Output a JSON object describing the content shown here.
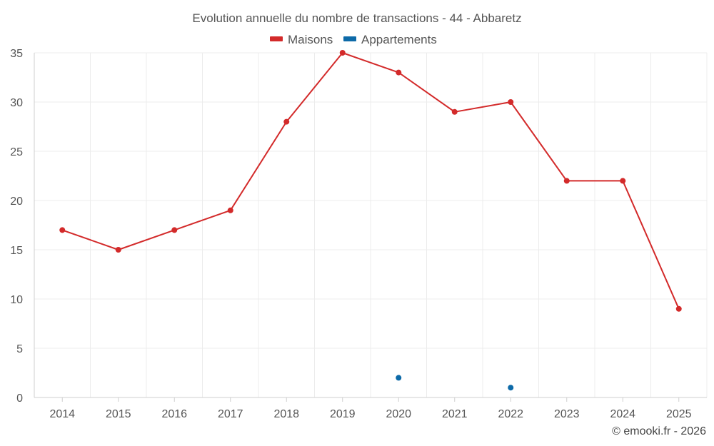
{
  "chart_data": {
    "type": "line",
    "title": "Evolution annuelle du nombre de transactions - 44 - Abbaretz",
    "categories": [
      "2014",
      "2015",
      "2016",
      "2017",
      "2018",
      "2019",
      "2020",
      "2021",
      "2022",
      "2023",
      "2024",
      "2025"
    ],
    "series": [
      {
        "name": "Maisons",
        "color": "#d32a2a",
        "values": [
          17,
          15,
          17,
          19,
          28,
          35,
          33,
          29,
          30,
          22,
          22,
          9
        ]
      },
      {
        "name": "Appartements",
        "color": "#0d6aa8",
        "values": [
          null,
          null,
          null,
          null,
          null,
          null,
          2,
          null,
          1,
          null,
          null,
          null
        ]
      }
    ],
    "yticks": [
      "0",
      "5",
      "10",
      "15",
      "20",
      "25",
      "30",
      "35"
    ],
    "ylim": [
      0,
      35
    ],
    "xlabel": "",
    "ylabel": "",
    "grid": true,
    "legend_position": "top-center"
  },
  "footer": {
    "credit": "© emooki.fr - 2026"
  }
}
